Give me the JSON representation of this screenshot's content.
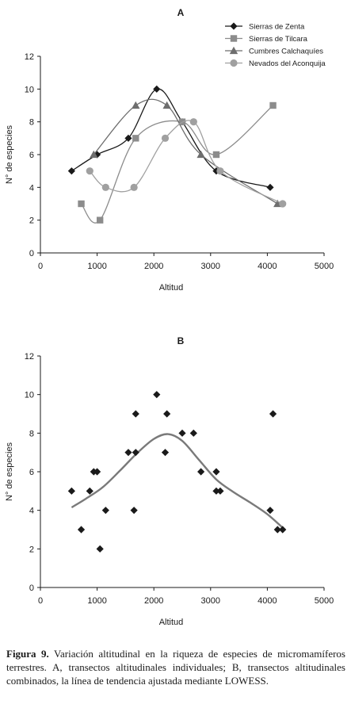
{
  "chart_data": [
    {
      "type": "line",
      "title": "A",
      "xlabel": "Altitud",
      "ylabel": "N° de especies",
      "xlim": [
        0,
        5000
      ],
      "ylim": [
        0,
        12
      ],
      "xticks": [
        0,
        1000,
        2000,
        3000,
        4000,
        5000
      ],
      "yticks": [
        0,
        2,
        4,
        6,
        8,
        10,
        12
      ],
      "grid": false,
      "legend": "top-right",
      "series": [
        {
          "name": "Sierras de Zenta",
          "marker": "diamond",
          "color": "#1a1a1a",
          "x": [
            550,
            1000,
            1550,
            2050,
            2500,
            3100,
            4050
          ],
          "y": [
            5,
            6,
            7,
            10,
            8,
            5,
            4
          ]
        },
        {
          "name": "Sierras de Tilcara",
          "marker": "square",
          "color": "#8c8c8c",
          "x": [
            720,
            1050,
            1680,
            2500,
            3100,
            4100
          ],
          "y": [
            3,
            2,
            7,
            8,
            6,
            9
          ]
        },
        {
          "name": "Cumbres Calchaquíes",
          "marker": "triangle",
          "color": "#6e6e6e",
          "x": [
            940,
            1680,
            2230,
            2830,
            4180
          ],
          "y": [
            6,
            9,
            9,
            6,
            3
          ]
        },
        {
          "name": "Nevados del Aconquija",
          "marker": "circle",
          "color": "#a0a0a0",
          "x": [
            870,
            1150,
            1650,
            2200,
            2700,
            3170,
            4270
          ],
          "y": [
            5,
            4,
            4,
            7,
            8,
            5,
            3
          ]
        }
      ]
    },
    {
      "type": "scatter",
      "title": "B",
      "xlabel": "Altitud",
      "ylabel": "N° de especies",
      "xlim": [
        0,
        5000
      ],
      "ylim": [
        0,
        12
      ],
      "xticks": [
        0,
        1000,
        2000,
        3000,
        4000,
        5000
      ],
      "yticks": [
        0,
        2,
        4,
        6,
        8,
        10,
        12
      ],
      "grid": false,
      "points": {
        "marker": "diamond",
        "color": "#1a1a1a",
        "x": [
          550,
          720,
          870,
          940,
          1000,
          1050,
          1150,
          1550,
          1650,
          1680,
          1680,
          2050,
          2200,
          2230,
          2500,
          2700,
          2830,
          3100,
          3100,
          3170,
          4050,
          4100,
          4180,
          4270
        ],
        "y": [
          5,
          3,
          5,
          6,
          6,
          2,
          4,
          7,
          4,
          7,
          9,
          10,
          7,
          9,
          8,
          8,
          6,
          5,
          6,
          5,
          4,
          9,
          3,
          3
        ]
      },
      "trend": {
        "method": "LOWESS",
        "color": "#7a7a7a",
        "x": [
          550,
          800,
          1100,
          1400,
          1700,
          2000,
          2250,
          2500,
          2800,
          3100,
          3400,
          3700,
          4000,
          4270
        ],
        "y": [
          4.15,
          4.6,
          5.2,
          6.05,
          6.95,
          7.7,
          7.95,
          7.6,
          6.6,
          5.6,
          4.95,
          4.4,
          3.8,
          3.1
        ]
      }
    }
  ],
  "caption": {
    "label": "Figura 9.",
    "text": "Variación altitudinal en la riqueza de especies de micromamíferos terrestres. A, transectos altitudinales individuales; B, transectos altitudinales combinados, la línea de tendencia ajustada mediante LOWESS."
  }
}
